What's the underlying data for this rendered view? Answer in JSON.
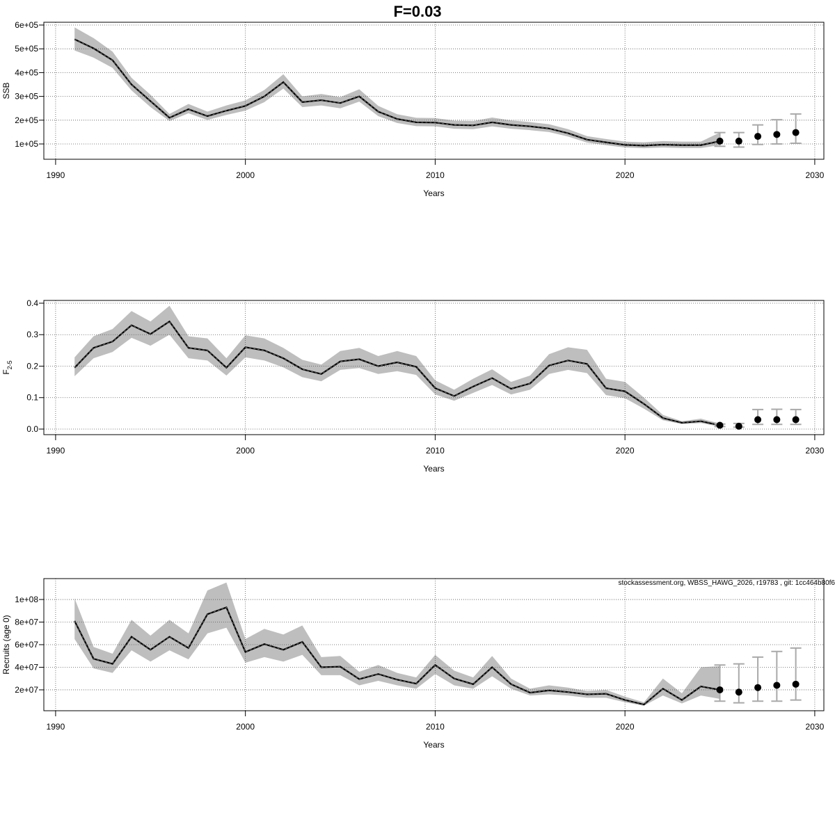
{
  "title": "F=0.03",
  "footnote": "stockassessment.org, WBSS_HAWG_2026, r19783 , git: 1cc464b80f6",
  "colors": {
    "band": "#bebebe",
    "line": "#000000",
    "errorbar": "#a9a9a9",
    "grid": "#555555"
  },
  "chart_data": [
    {
      "type": "line",
      "ylabel": "SSB",
      "xlabel": "Years",
      "xlim": [
        1989.38,
        2030.48
      ],
      "ylim": [
        35700,
        611700
      ],
      "xticks": [
        1990,
        2000,
        2010,
        2020,
        2030
      ],
      "xtick_labels": [
        "1990",
        "2000",
        "2010",
        "2020",
        "2030"
      ],
      "yticks": [
        100000,
        200000,
        300000,
        400000,
        500000,
        600000
      ],
      "ytick_labels": [
        "1e+05",
        "2e+05",
        "3e+05",
        "4e+05",
        "5e+05",
        "6e+05"
      ],
      "grid": true,
      "years": [
        1991,
        1992,
        1993,
        1994,
        1995,
        1996,
        1997,
        1998,
        1999,
        2000,
        2001,
        2002,
        2003,
        2004,
        2005,
        2006,
        2007,
        2008,
        2009,
        2010,
        2011,
        2012,
        2013,
        2014,
        2015,
        2016,
        2017,
        2018,
        2019,
        2020,
        2021,
        2022,
        2023,
        2024,
        2025
      ],
      "estimate": [
        540000,
        502000,
        452000,
        350000,
        280000,
        210000,
        246000,
        217000,
        240000,
        260000,
        300000,
        360000,
        276000,
        284000,
        272000,
        300000,
        236000,
        205000,
        191000,
        190000,
        180000,
        178000,
        191000,
        180000,
        174000,
        165000,
        145000,
        118000,
        107000,
        96000,
        93000,
        97000,
        95000,
        95000,
        112000
      ],
      "lower": [
        493000,
        463000,
        420000,
        325000,
        255000,
        196000,
        229000,
        201000,
        222000,
        240000,
        276000,
        333000,
        255000,
        262000,
        250000,
        278000,
        217000,
        188000,
        175000,
        174000,
        164000,
        162000,
        174000,
        164000,
        158000,
        150000,
        131000,
        106000,
        95000,
        85000,
        82000,
        85000,
        83000,
        83000,
        95000
      ],
      "upper": [
        590000,
        545000,
        488000,
        378000,
        307000,
        226000,
        268000,
        236000,
        262000,
        283000,
        327000,
        393000,
        300000,
        310000,
        297000,
        330000,
        260000,
        225000,
        210000,
        209000,
        198000,
        196000,
        211000,
        199000,
        192000,
        183000,
        162000,
        133000,
        121000,
        110000,
        107000,
        112000,
        110000,
        110000,
        148000
      ],
      "forecast": {
        "years": [
          2025,
          2026,
          2027,
          2028,
          2029
        ],
        "estimate": [
          112000,
          112000,
          132000,
          140000,
          148000
        ],
        "lower": [
          90000,
          87000,
          98000,
          100000,
          103000
        ],
        "upper": [
          148000,
          148000,
          180000,
          202000,
          226000
        ]
      }
    },
    {
      "type": "line",
      "ylabel": "F",
      "ylabel_sub": "2-5",
      "xlabel": "Years",
      "xlim": [
        1989.38,
        2030.48
      ],
      "ylim": [
        -0.0177,
        0.4088
      ],
      "xticks": [
        1990,
        2000,
        2010,
        2020,
        2030
      ],
      "xtick_labels": [
        "1990",
        "2000",
        "2010",
        "2020",
        "2030"
      ],
      "yticks": [
        0,
        0.1,
        0.2,
        0.3,
        0.4
      ],
      "ytick_labels": [
        "0.0",
        "0.1",
        "0.2",
        "0.3",
        "0.4"
      ],
      "grid": true,
      "years": [
        1991,
        1992,
        1993,
        1994,
        1995,
        1996,
        1997,
        1998,
        1999,
        2000,
        2001,
        2002,
        2003,
        2004,
        2005,
        2006,
        2007,
        2008,
        2009,
        2010,
        2011,
        2012,
        2013,
        2014,
        2015,
        2016,
        2017,
        2018,
        2019,
        2020,
        2021,
        2022,
        2023,
        2024,
        2025
      ],
      "estimate": [
        0.195,
        0.258,
        0.278,
        0.33,
        0.302,
        0.342,
        0.258,
        0.25,
        0.195,
        0.26,
        0.25,
        0.225,
        0.19,
        0.175,
        0.215,
        0.222,
        0.2,
        0.212,
        0.198,
        0.13,
        0.105,
        0.135,
        0.162,
        0.128,
        0.145,
        0.202,
        0.218,
        0.207,
        0.13,
        0.12,
        0.08,
        0.035,
        0.02,
        0.025,
        0.012
      ],
      "lower": [
        0.168,
        0.225,
        0.245,
        0.29,
        0.265,
        0.3,
        0.225,
        0.218,
        0.17,
        0.228,
        0.218,
        0.196,
        0.165,
        0.152,
        0.188,
        0.194,
        0.175,
        0.184,
        0.172,
        0.11,
        0.09,
        0.115,
        0.14,
        0.11,
        0.125,
        0.175,
        0.188,
        0.178,
        0.108,
        0.098,
        0.065,
        0.028,
        0.016,
        0.019,
        0.008
      ],
      "upper": [
        0.228,
        0.295,
        0.318,
        0.375,
        0.342,
        0.392,
        0.295,
        0.288,
        0.225,
        0.298,
        0.288,
        0.258,
        0.22,
        0.205,
        0.248,
        0.258,
        0.232,
        0.248,
        0.232,
        0.155,
        0.125,
        0.16,
        0.19,
        0.15,
        0.17,
        0.238,
        0.26,
        0.252,
        0.16,
        0.15,
        0.1,
        0.045,
        0.025,
        0.033,
        0.018
      ],
      "forecast": {
        "years": [
          2025,
          2026,
          2027,
          2028,
          2029
        ],
        "estimate": [
          0.012,
          0.009,
          0.03,
          0.03,
          0.03
        ],
        "lower": [
          0.008,
          0.006,
          0.015,
          0.015,
          0.015
        ],
        "upper": [
          0.016,
          0.018,
          0.062,
          0.063,
          0.062
        ]
      }
    },
    {
      "type": "line",
      "ylabel": "Recruits (age 0)",
      "xlabel": "Years",
      "xlim": [
        1989.38,
        2030.48
      ],
      "ylim": [
        1500000,
        118500000
      ],
      "xticks": [
        1990,
        2000,
        2010,
        2020,
        2030
      ],
      "xtick_labels": [
        "1990",
        "2000",
        "2010",
        "2020",
        "2030"
      ],
      "yticks": [
        20000000,
        40000000,
        60000000,
        80000000,
        100000000
      ],
      "ytick_labels": [
        "2e+07",
        "4e+07",
        "6e+07",
        "8e+07",
        "1e+08"
      ],
      "grid": true,
      "years": [
        1991,
        1992,
        1993,
        1994,
        1995,
        1996,
        1997,
        1998,
        1999,
        2000,
        2001,
        2002,
        2003,
        2004,
        2005,
        2006,
        2007,
        2008,
        2009,
        2010,
        2011,
        2012,
        2013,
        2014,
        2015,
        2016,
        2017,
        2018,
        2019,
        2020,
        2021,
        2022,
        2023,
        2024,
        2025
      ],
      "estimate": [
        81000000,
        47500000,
        43000000,
        67000000,
        55500000,
        67000000,
        57000000,
        87000000,
        93000000,
        53500000,
        60500000,
        55500000,
        62500000,
        40000000,
        40500000,
        29500000,
        34000000,
        29000000,
        25500000,
        42000000,
        30000000,
        25000000,
        40000000,
        25000000,
        17500000,
        19500000,
        18000000,
        16000000,
        16500000,
        11000000,
        7000000,
        21000000,
        11000000,
        23000000,
        20000000
      ],
      "lower": [
        65000000,
        39000000,
        35000000,
        55000000,
        45000000,
        55000000,
        47000000,
        70000000,
        75000000,
        44000000,
        49000000,
        45000000,
        51000000,
        33000000,
        33000000,
        24000000,
        28000000,
        24000000,
        21000000,
        34000000,
        24000000,
        21000000,
        32000000,
        21000000,
        15000000,
        16000000,
        15000000,
        13000000,
        13000000,
        9000000,
        6000000,
        15000000,
        8000000,
        15000000,
        12000000
      ],
      "upper": [
        101000000,
        58000000,
        52000000,
        82000000,
        68000000,
        82000000,
        70000000,
        108000000,
        115000000,
        65000000,
        74000000,
        69000000,
        77000000,
        49000000,
        50000000,
        36000000,
        42000000,
        35000000,
        31000000,
        51000000,
        37000000,
        31000000,
        50000000,
        30000000,
        21000000,
        24000000,
        22000000,
        19000000,
        20000000,
        14000000,
        9000000,
        30000000,
        17000000,
        40000000,
        41000000
      ],
      "forecast": {
        "years": [
          2025,
          2026,
          2027,
          2028,
          2029
        ],
        "estimate": [
          20000000,
          18000000,
          22000000,
          24000000,
          25000000
        ],
        "lower": [
          10000000,
          8500000,
          10000000,
          10000000,
          11000000
        ],
        "upper": [
          42000000,
          43000000,
          49000000,
          54000000,
          57000000
        ]
      }
    }
  ]
}
